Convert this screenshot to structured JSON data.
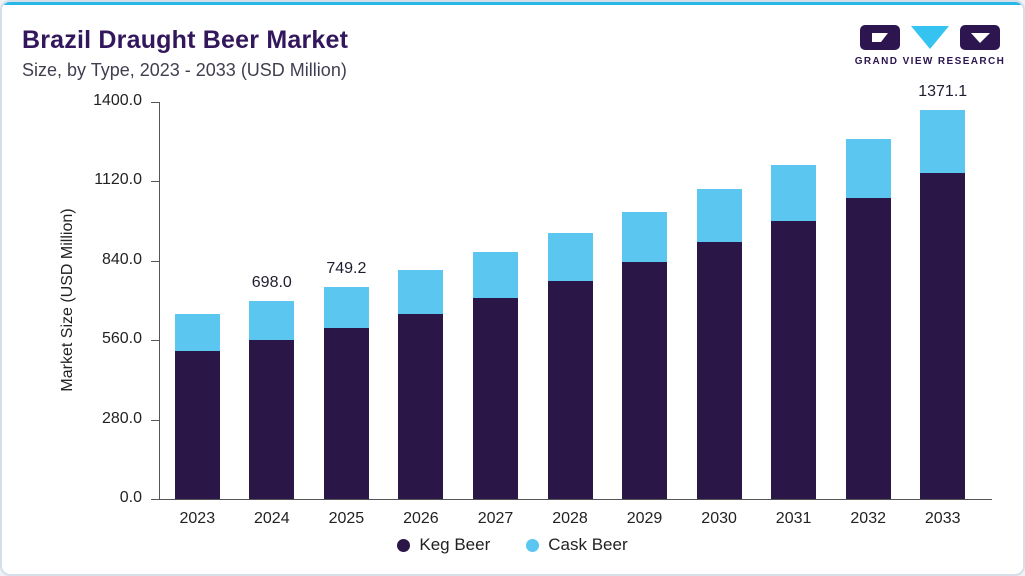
{
  "header": {
    "title": "Brazil Draught Beer Market",
    "subtitle": "Size, by Type, 2023 - 2033 (USD Million)"
  },
  "logo": {
    "text": "GRAND VIEW RESEARCH"
  },
  "colors": {
    "title": "#33175c",
    "accent_line": "#29b7e8",
    "axis": "#555555",
    "text": "#222222",
    "label": "#1e1e30",
    "keg": "#2b1747",
    "cask": "#5bc6f0"
  },
  "chart_data": {
    "type": "bar",
    "stacked": true,
    "title": "Brazil Draught Beer Market",
    "subtitle": "Size, by Type, 2023 - 2033 (USD Million)",
    "ylabel": "Market Size (USD Million)",
    "xlabel": "",
    "ylim": [
      0,
      1400
    ],
    "yticks": [
      0,
      280,
      560,
      840,
      1120,
      1400
    ],
    "grid": false,
    "legend_position": "bottom",
    "categories": [
      "2023",
      "2024",
      "2025",
      "2026",
      "2027",
      "2028",
      "2029",
      "2030",
      "2031",
      "2032",
      "2033"
    ],
    "series": [
      {
        "name": "Keg Beer",
        "color": "#2b1747",
        "values": [
          521,
          560,
          603,
          654,
          710,
          770,
          836,
          906,
          981,
          1062,
          1150
        ]
      },
      {
        "name": "Cask Beer",
        "color": "#5bc6f0",
        "values": [
          130,
          138,
          146.2,
          154,
          161,
          169,
          177,
          186,
          197,
          208,
          221.1
        ]
      }
    ],
    "totals": [
      651,
      698,
      749.2,
      808,
      871,
      939,
      1013,
      1092,
      1178,
      1270,
      1371.1
    ],
    "totals_labeled": {
      "2024": "698.0",
      "2025": "749.2",
      "2033": "1371.1"
    }
  }
}
